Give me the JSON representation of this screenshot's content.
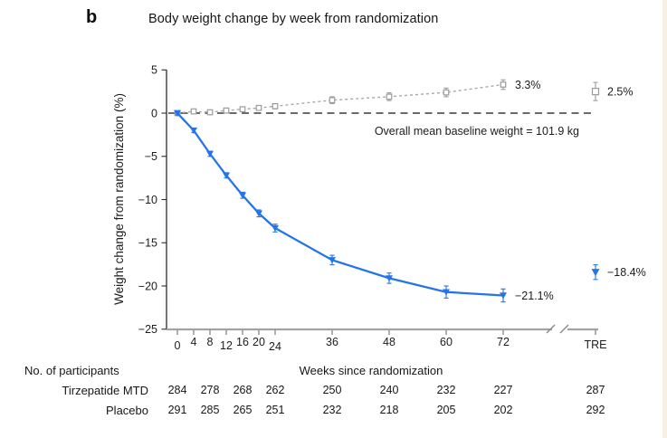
{
  "panel": {
    "label": "b",
    "title": "Body weight change by week from randomization"
  },
  "chart_data": {
    "type": "line",
    "title": "Body weight change by week from randomization",
    "xlabel": "Weeks since randomization",
    "ylabel": "Weight change from randomization (%)",
    "ylim": [
      -25,
      5
    ],
    "yticks": [
      5,
      0,
      -5,
      -10,
      -15,
      -20,
      -25
    ],
    "xticks": [
      0,
      4,
      8,
      12,
      16,
      20,
      24,
      36,
      48,
      60,
      72
    ],
    "axis_break_column_label": "TRE",
    "grid": false,
    "legend_position": "none",
    "zero_line_annotation": "Overall mean baseline weight = 101.9 kg",
    "series": [
      {
        "name": "Tirzepatide MTD",
        "color": "#2475e8",
        "line_style": "solid",
        "marker": "triangle-down",
        "x": [
          0,
          4,
          8,
          12,
          16,
          20,
          24,
          36,
          48,
          60,
          72
        ],
        "y": [
          0,
          -2.0,
          -4.7,
          -7.2,
          -9.5,
          -11.6,
          -13.3,
          -17.0,
          -19.1,
          -20.7,
          -21.1
        ],
        "err": [
          0.2,
          0.25,
          0.3,
          0.3,
          0.35,
          0.4,
          0.45,
          0.55,
          0.6,
          0.7,
          0.75
        ],
        "end_label": "−21.1%",
        "tre_point": {
          "y": -18.4,
          "err": 0.85,
          "label": "−18.4%"
        }
      },
      {
        "name": "Placebo",
        "color": "#a9a9a9",
        "marker_stroke": "#9c9c9c",
        "line_style": "dashed",
        "marker": "square-open",
        "x": [
          0,
          4,
          8,
          12,
          16,
          20,
          24,
          36,
          48,
          60,
          72
        ],
        "y": [
          0,
          0.2,
          0.1,
          0.3,
          0.45,
          0.6,
          0.8,
          1.5,
          1.9,
          2.4,
          3.3
        ],
        "err": [
          0.1,
          0.15,
          0.15,
          0.2,
          0.2,
          0.25,
          0.3,
          0.4,
          0.45,
          0.5,
          0.55
        ],
        "end_label": "3.3%",
        "tre_point": {
          "y": 2.5,
          "err": 1.05,
          "label": "2.5%"
        }
      }
    ]
  },
  "participants_table": {
    "header": "No. of participants",
    "columns_weeks": [
      0,
      8,
      16,
      24,
      36,
      48,
      60,
      72
    ],
    "tre_column_label": "TRE",
    "rows": [
      {
        "label": "Tirzepatide MTD",
        "values": [
          "284",
          "278",
          "268",
          "262",
          "250",
          "240",
          "232",
          "227"
        ],
        "tre_value": "287"
      },
      {
        "label": "Placebo",
        "values": [
          "291",
          "285",
          "265",
          "251",
          "232",
          "218",
          "205",
          "202"
        ],
        "tre_value": "292"
      }
    ]
  },
  "colors": {
    "tirzepatide": "#2475e8",
    "placebo": "#a9a9a9",
    "baseline_dash": "#3a3a3a",
    "x_axis": "#a3a3a3",
    "y_axis": "#2b2b2b",
    "text": "#1c1c1c"
  }
}
